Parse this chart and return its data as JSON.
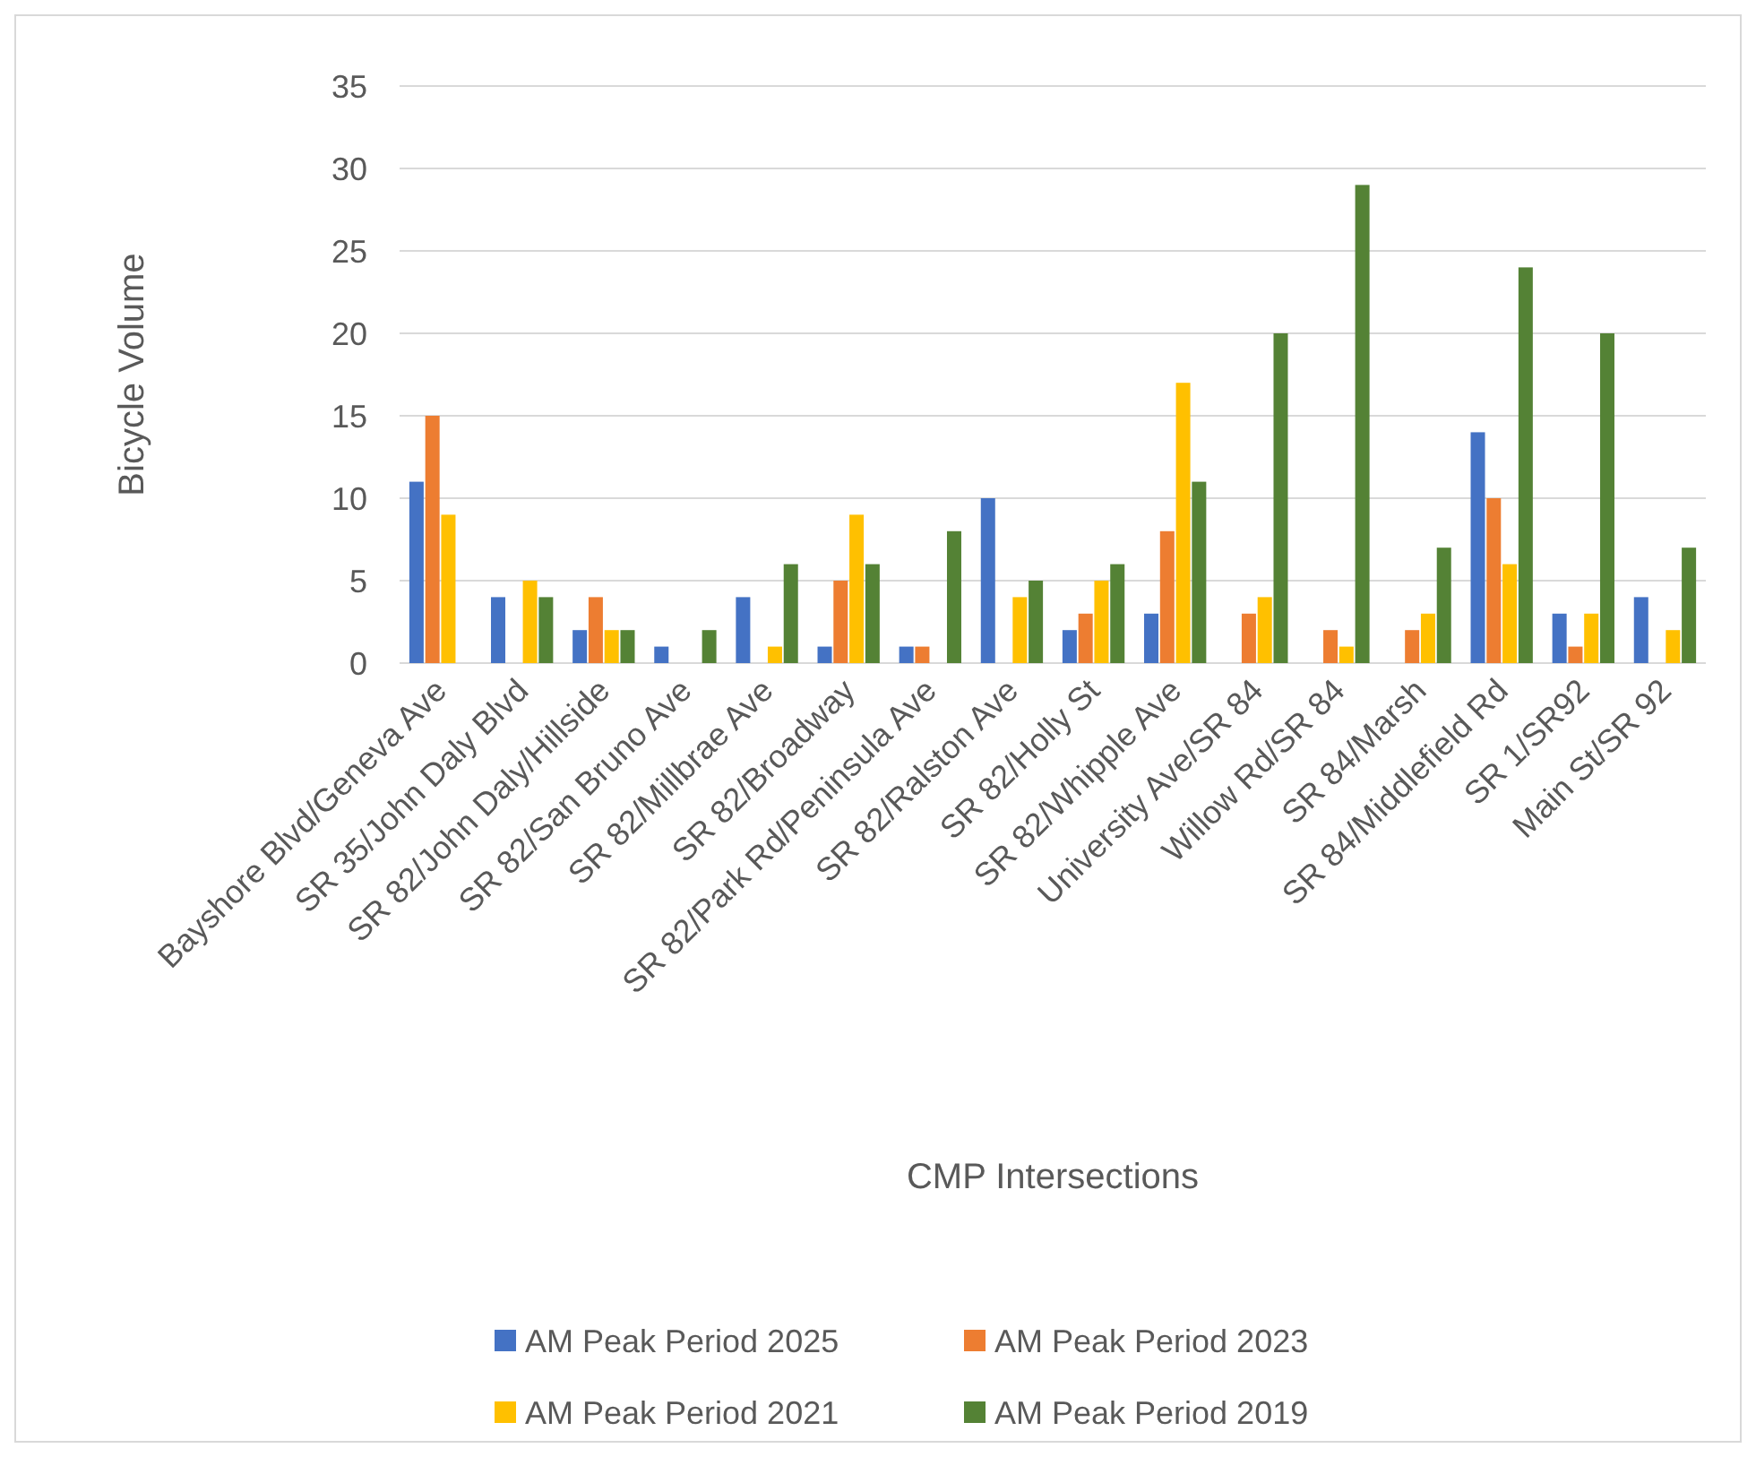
{
  "chart_data": {
    "type": "bar",
    "xlabel": "CMP Intersections",
    "ylabel": "Bicycle Volume",
    "categories": [
      "Bayshore Blvd/Geneva Ave",
      "SR 35/John Daly Blvd",
      "SR 82/John Daly/Hillside",
      "SR 82/San Bruno Ave",
      "SR 82/Millbrae Ave",
      "SR 82/Broadway",
      "SR 82/Park Rd/Peninsula Ave",
      "SR 82/Ralston Ave",
      "SR 82/Holly St",
      "SR 82/Whipple Ave",
      "University Ave/SR 84",
      "Willow Rd/SR 84",
      "SR 84/Marsh",
      "SR 84/Middlefield Rd",
      "SR 1/SR92",
      "Main St/SR 92"
    ],
    "series": [
      {
        "name": "AM Peak Period 2025",
        "color": "#4472c4",
        "values": [
          11,
          4,
          2,
          1,
          4,
          1,
          1,
          10,
          2,
          3,
          null,
          null,
          null,
          14,
          3,
          4
        ]
      },
      {
        "name": "AM Peak Period 2023",
        "color": "#ed7d31",
        "values": [
          15,
          null,
          4,
          null,
          null,
          5,
          1,
          null,
          3,
          8,
          3,
          2,
          2,
          10,
          1,
          null
        ]
      },
      {
        "name": "AM Peak Period 2021",
        "color": "#ffc000",
        "values": [
          9,
          5,
          2,
          null,
          1,
          9,
          null,
          4,
          5,
          17,
          4,
          1,
          3,
          6,
          3,
          2
        ]
      },
      {
        "name": "AM Peak Period 2019",
        "color": "#548235",
        "values": [
          null,
          4,
          2,
          2,
          6,
          6,
          8,
          5,
          6,
          11,
          20,
          29,
          7,
          24,
          20,
          7
        ]
      }
    ],
    "ylim": [
      0,
      35
    ],
    "yticks": [
      0,
      5,
      10,
      15,
      20,
      25,
      30,
      35
    ],
    "grid": "y",
    "legend": "bottom"
  }
}
